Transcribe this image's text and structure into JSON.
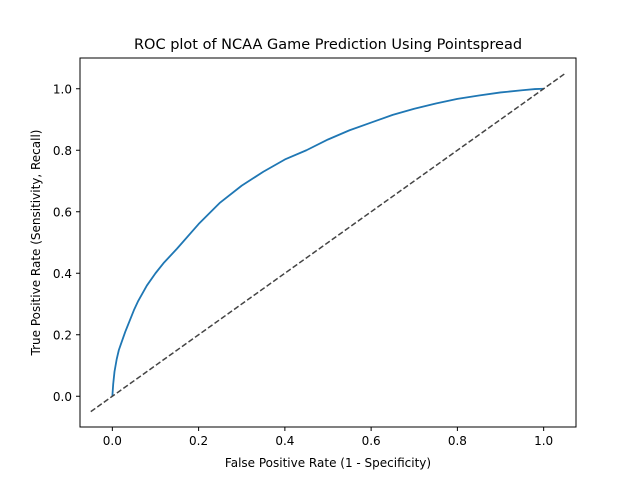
{
  "chart_data": {
    "type": "line",
    "title": "ROC plot of NCAA Game Prediction Using Pointspread",
    "xlabel": "False Positive Rate (1 - Specificity)",
    "ylabel": "True Positive Rate (Sensitivity, Recall)",
    "xlim": [
      -0.075,
      1.075
    ],
    "ylim": [
      -0.1,
      1.1
    ],
    "x_ticks": [
      0.0,
      0.2,
      0.4,
      0.6,
      0.8,
      1.0
    ],
    "x_tick_labels": [
      "0.0",
      "0.2",
      "0.4",
      "0.6",
      "0.8",
      "1.0"
    ],
    "y_ticks": [
      0.0,
      0.2,
      0.4,
      0.6,
      0.8,
      1.0
    ],
    "y_tick_labels": [
      "0.0",
      "0.2",
      "0.4",
      "0.6",
      "0.8",
      "1.0"
    ],
    "grid": false,
    "series": [
      {
        "style": "solid",
        "color": "#1f77b4",
        "x": [
          0.0,
          0.002,
          0.005,
          0.01,
          0.015,
          0.02,
          0.03,
          0.04,
          0.05,
          0.06,
          0.08,
          0.1,
          0.12,
          0.15,
          0.2,
          0.25,
          0.3,
          0.35,
          0.4,
          0.45,
          0.5,
          0.55,
          0.6,
          0.65,
          0.7,
          0.75,
          0.8,
          0.85,
          0.9,
          0.95,
          0.98,
          1.0
        ],
        "y": [
          0.0,
          0.04,
          0.08,
          0.12,
          0.15,
          0.17,
          0.21,
          0.245,
          0.28,
          0.31,
          0.36,
          0.4,
          0.435,
          0.48,
          0.56,
          0.63,
          0.685,
          0.73,
          0.77,
          0.8,
          0.835,
          0.865,
          0.89,
          0.915,
          0.935,
          0.952,
          0.967,
          0.978,
          0.988,
          0.995,
          0.999,
          1.0
        ]
      },
      {
        "style": "dashed",
        "color": "#444444",
        "x": [
          -0.05,
          1.05
        ],
        "y": [
          -0.05,
          1.05
        ]
      }
    ]
  }
}
